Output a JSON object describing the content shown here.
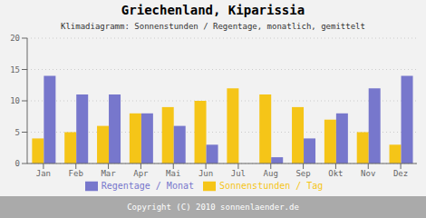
{
  "chart_data": {
    "type": "bar",
    "title": "Griechenland, Kiparissia",
    "subtitle": "Klimadiagramm: Sonnenstunden / Regentage, monatlich, gemittelt",
    "annotations": [
      "Copyright (C) 2010 sonnenlaender.de"
    ],
    "categories": [
      "Jan",
      "Feb",
      "Mar",
      "Apr",
      "Mai",
      "Jun",
      "Jul",
      "Aug",
      "Sep",
      "Okt",
      "Nov",
      "Dez"
    ],
    "series": [
      {
        "name": "Sonnenstunden / Tag",
        "color": "#F5C518",
        "values": [
          4,
          5,
          6,
          8,
          9,
          10,
          12,
          11,
          9,
          7,
          5,
          3
        ]
      },
      {
        "name": "Regentage / Monat",
        "color": "#7777CC",
        "values": [
          14,
          11,
          11,
          8,
          6,
          3,
          0,
          1,
          4,
          8,
          12,
          14
        ]
      }
    ],
    "ylim": [
      0,
      20
    ],
    "yticks": [
      0,
      5,
      10,
      15,
      20
    ],
    "grid": true,
    "legend": "bottom"
  }
}
